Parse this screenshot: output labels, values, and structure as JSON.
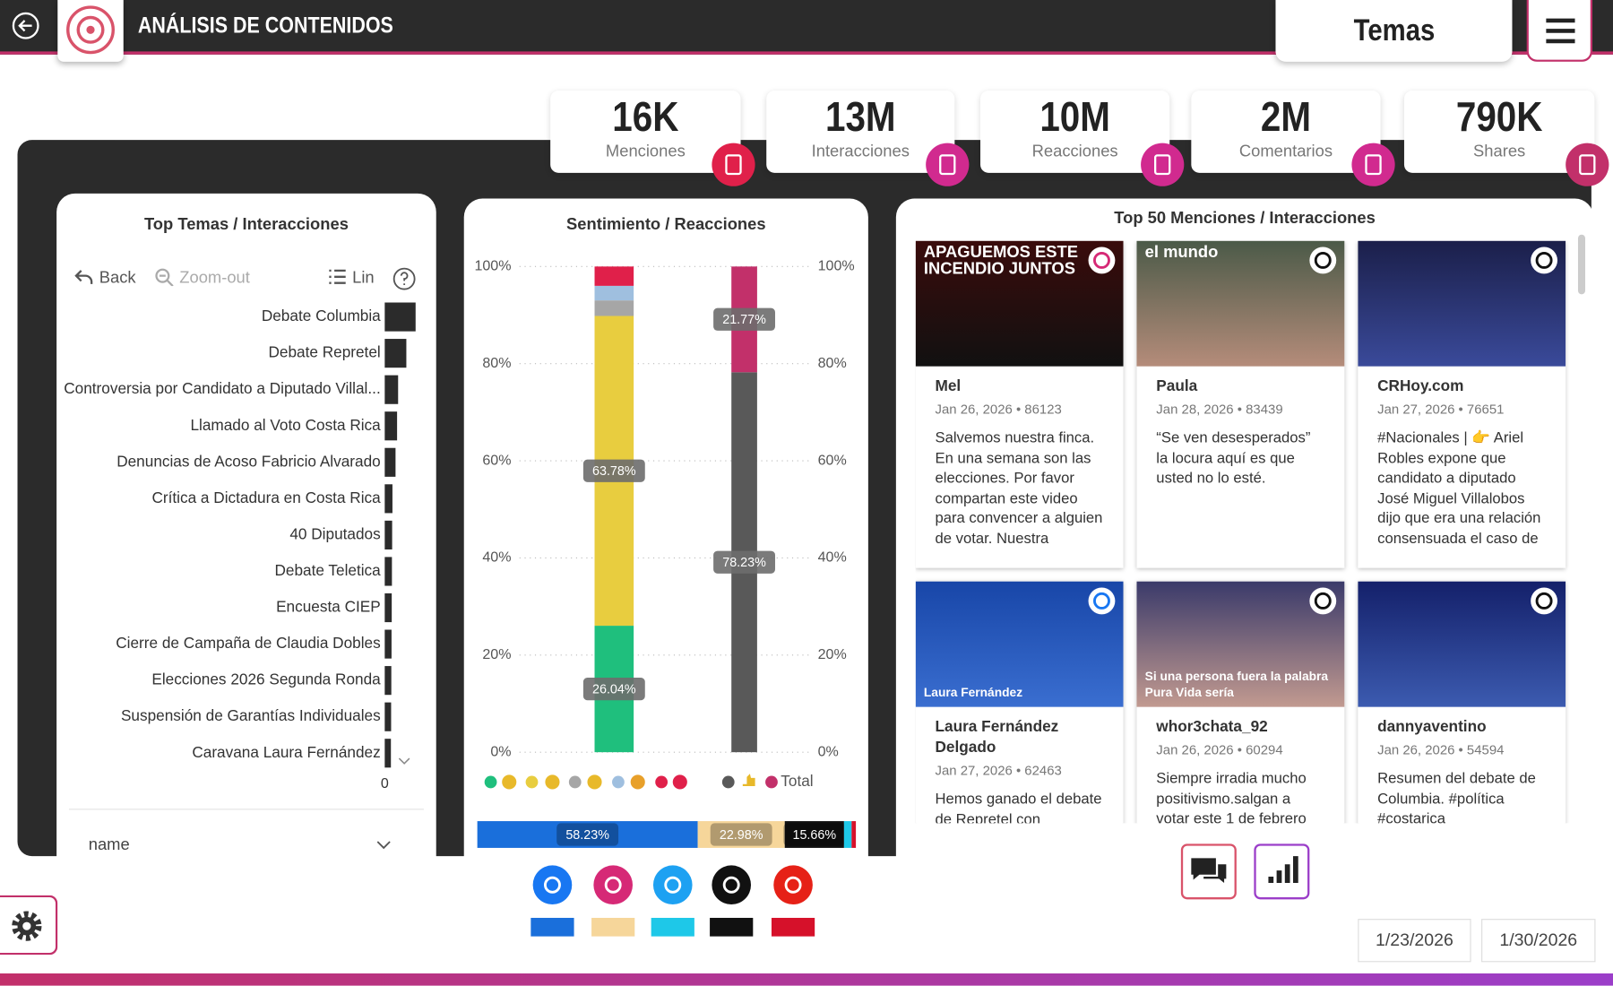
{
  "header": {
    "title": "ANÁLISIS DE CONTENIDOS",
    "selector": "Temas"
  },
  "kpis": [
    {
      "value": "16K",
      "label": "Menciones"
    },
    {
      "value": "13M",
      "label": "Interacciones"
    },
    {
      "value": "10M",
      "label": "Reacciones"
    },
    {
      "value": "2M",
      "label": "Comentarios"
    },
    {
      "value": "790K",
      "label": "Shares"
    }
  ],
  "top_temas": {
    "title": "Top Temas / Interacciones",
    "toolbar": {
      "back": "Back",
      "zoom_out": "Zoom-out",
      "scale": "Lin"
    },
    "categories": [
      "Debate Columbia",
      "Debate Repretel",
      "Controversia por Candidato a Diputado Villal...",
      "Llamado al Voto Costa Rica",
      "Denuncias de Acoso Fabricio Alvarado",
      "Crítica a Dictadura en Costa Rica",
      "40 Diputados",
      "Debate Teletica",
      "Encuesta CIEP",
      "Cierre de Campaña de Claudia Dobles",
      "Elecciones 2026 Segunda Ronda",
      "Suspensión de Garantías Individuales",
      "Caravana Laura Fernández"
    ],
    "values": [
      3000000,
      2100000,
      1300000,
      1200000,
      1050000,
      750000,
      720000,
      700000,
      680000,
      660000,
      640000,
      620000,
      600000
    ],
    "xlim": [
      0,
      3000000
    ],
    "xticks": [
      0
    ],
    "color": "#2b2b2b",
    "field": "name"
  },
  "sentimiento": {
    "title": "Sentimiento / Reacciones",
    "ylim": [
      0,
      100
    ],
    "yticks": [
      {
        "value": 0,
        "label": "0%"
      },
      {
        "value": 20,
        "label": "20%"
      },
      {
        "value": 40,
        "label": "40%"
      },
      {
        "value": 60,
        "label": "60%"
      },
      {
        "value": 80,
        "label": "80%"
      },
      {
        "value": 100,
        "label": "100%"
      }
    ],
    "grid": true,
    "bars": [
      {
        "segments": [
          {
            "color": "#1fbf7d",
            "value": 26.04,
            "value_label": "26.04%"
          },
          {
            "color": "#e8cd3f",
            "value": 63.78,
            "value_label": "63.78%"
          },
          {
            "color": "#a6a6a6",
            "value": 3.2
          },
          {
            "color": "#9fbfdf",
            "value": 3.0
          },
          {
            "color": "#e0204a",
            "value": 3.98
          }
        ]
      },
      {
        "segments": [
          {
            "color": "#595959",
            "value": 78.23,
            "value_label": "78.23%"
          },
          {
            "color": "#c2306a",
            "value": 21.77,
            "value_label": "21.77%"
          }
        ]
      }
    ],
    "legend_total": "Total"
  },
  "plataformas": {
    "xlim": [
      0,
      100
    ],
    "segments": [
      {
        "color": "#1a6fdb",
        "value": 58.23,
        "value_label": "58.23%"
      },
      {
        "color": "#f6d69a",
        "value": 22.98,
        "value_label": "22.98%"
      },
      {
        "color": "#111111",
        "value": 15.66,
        "value_label": "15.66%"
      },
      {
        "color": "#1ec8e8",
        "value": 2.0
      },
      {
        "color": "#d6112a",
        "value": 1.13
      }
    ]
  },
  "mentions": {
    "title": "Top 50 Menciones / Interacciones",
    "cards": [
      {
        "name": "Mel",
        "meta": "Jan 26, 2026 • 86123",
        "text": "Salvemos nuestra finca. En una semana son las elecciones. Por favor compartan este video para convencer a alguien de votar. Nuestra",
        "caption": "APAGUEMOS ESTE INCENDIO JUNTOS",
        "platform": "instagram"
      },
      {
        "name": "Paula",
        "meta": "Jan 28, 2026 • 83439",
        "text": "“Se ven desesperados” la locura aquí es que usted no lo esté.",
        "caption": "el mundo",
        "platform": "tiktok"
      },
      {
        "name": "CRHoy.com",
        "meta": "Jan 27, 2026 • 76651",
        "text": "#Nacionales | 👉 Ariel Robles expone que candidato a diputado José Miguel Villalobos dijo que era una relación consensuada el caso de",
        "platform": "tiktok"
      },
      {
        "name": "Laura Fernández Delgado",
        "meta": "Jan 27, 2026 • 62463",
        "text": "Hemos ganado el debate de Repretel con",
        "caption": "Laura Fernández",
        "platform": "facebook"
      },
      {
        "name": "whor3chata_92",
        "meta": "Jan 26, 2026 • 60294",
        "text": "Siempre irradia mucho positivismo.salgan a votar este 1 de febrero",
        "caption": "Si una persona fuera la palabra Pura Vida sería",
        "platform": "tiktok"
      },
      {
        "name": "dannyaventino",
        "meta": "Jan 26, 2026 • 54594",
        "text": "Resumen del debate de Columbia. #política #costarica",
        "platform": "tiktok"
      }
    ]
  },
  "dates": [
    "1/23/2026",
    "1/30/2026"
  ]
}
